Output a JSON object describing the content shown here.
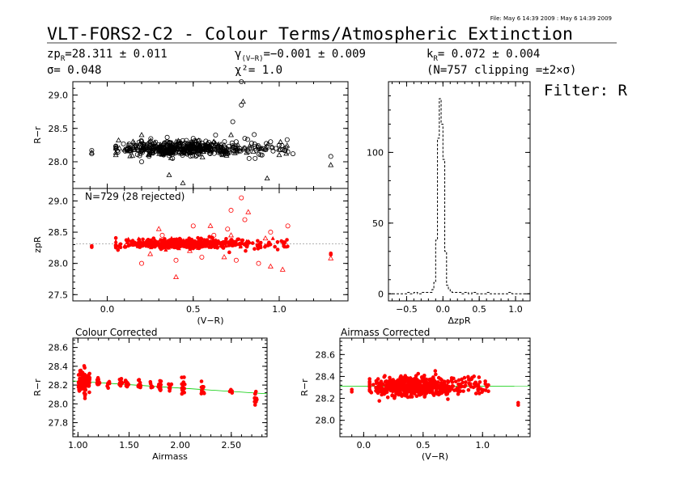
{
  "header": {
    "file_stamp": "File: May  6 14:39 2009 : May  6 14:39 2009",
    "title": "VLT-FORS2-C2 - Colour Terms/Atmospheric Extinction",
    "zp": "zpR=28.311 ± 0.011",
    "zp_main": "zp",
    "zp_sub": "R",
    "zp_rest": "=28.311 ± 0.011",
    "sigma": "σ= 0.048",
    "gamma_main": "γ",
    "gamma_sub": "(V−R)",
    "gamma_rest": "=−0.001 ± 0.009",
    "chi2": "χ²=  1.0",
    "k_main": "k",
    "k_sub": "R",
    "k_rest": "= 0.072 ± 0.004",
    "clip": "(N=757 clipping =±2×σ)",
    "filter": "Filter: R"
  },
  "chart_data": [
    {
      "id": "raw_colour",
      "type": "scatter",
      "xlabel": "",
      "ylabel": "R−r",
      "xlim": [
        -0.2,
        1.4
      ],
      "ylim": [
        27.6,
        29.2
      ],
      "yticks": [
        28.0,
        28.5,
        29.0
      ],
      "ytick_labels": [
        "28.0",
        "28.5",
        "29.0"
      ],
      "xticks": [
        0.0,
        0.5,
        1.0
      ],
      "xtick_labels": [],
      "color": "#000000",
      "series": [
        {
          "marker": "circle",
          "points": [
            [
              -0.09,
              28.17
            ],
            [
              -0.09,
              28.12
            ],
            [
              0.2,
              28.0
            ],
            [
              0.25,
              28.3
            ],
            [
              0.3,
              28.15
            ],
            [
              0.35,
              28.25
            ],
            [
              0.38,
              28.05
            ],
            [
              0.42,
              28.3
            ],
            [
              0.47,
              28.2
            ],
            [
              0.5,
              28.35
            ],
            [
              0.52,
              28.1
            ],
            [
              0.55,
              28.28
            ],
            [
              0.6,
              28.18
            ],
            [
              0.63,
              28.4
            ],
            [
              0.66,
              28.22
            ],
            [
              0.7,
              28.12
            ],
            [
              0.73,
              28.6
            ],
            [
              0.75,
              28.3
            ],
            [
              0.77,
              28.2
            ],
            [
              0.78,
              28.85
            ],
            [
              0.78,
              29.2
            ],
            [
              0.8,
              28.35
            ],
            [
              0.82,
              28.15
            ],
            [
              0.84,
              28.28
            ],
            [
              0.86,
              28.05
            ],
            [
              0.88,
              28.22
            ],
            [
              0.9,
              28.1
            ],
            [
              0.92,
              28.18
            ],
            [
              0.95,
              28.3
            ],
            [
              0.98,
              28.2
            ],
            [
              1.0,
              28.25
            ],
            [
              1.02,
              28.18
            ],
            [
              1.05,
              28.15
            ],
            [
              1.08,
              28.12
            ],
            [
              1.3,
              28.08
            ]
          ]
        },
        {
          "marker": "triangle",
          "points": [
            [
              -0.09,
              28.14
            ],
            [
              0.05,
              28.2
            ],
            [
              0.1,
              28.18
            ],
            [
              0.15,
              28.3
            ],
            [
              0.2,
              28.4
            ],
            [
              0.24,
              28.1
            ],
            [
              0.27,
              28.22
            ],
            [
              0.32,
              28.15
            ],
            [
              0.36,
              27.8
            ],
            [
              0.4,
              28.3
            ],
            [
              0.44,
              27.68
            ],
            [
              0.48,
              28.2
            ],
            [
              0.56,
              28.15
            ],
            [
              0.62,
              28.3
            ],
            [
              0.67,
              28.1
            ],
            [
              0.72,
              28.4
            ],
            [
              0.76,
              28.25
            ],
            [
              0.79,
              28.9
            ],
            [
              0.85,
              28.15
            ],
            [
              0.9,
              28.2
            ],
            [
              0.93,
              27.75
            ],
            [
              1.0,
              28.1
            ],
            [
              1.3,
              27.95
            ]
          ]
        }
      ]
    },
    {
      "id": "zp_colour",
      "type": "scatter",
      "annotation": "N=729 (28 rejected)",
      "xlabel": "(V−R)",
      "ylabel": "zpR",
      "xlim": [
        -0.2,
        1.4
      ],
      "ylim": [
        27.4,
        29.2
      ],
      "yticks": [
        27.5,
        28.0,
        28.5,
        29.0
      ],
      "ytick_labels": [
        "27.5",
        "28.0",
        "28.5",
        "29.0"
      ],
      "xticks": [
        0.0,
        0.5,
        1.0
      ],
      "xtick_labels": [
        "0.0",
        "0.5",
        "1.0"
      ],
      "color": "#ff0000",
      "fit_line": {
        "y": 28.311,
        "color": "#999999",
        "style": "dotted"
      },
      "series": [
        {
          "marker": "circle-open",
          "points": [
            [
              0.2,
              28.0
            ],
            [
              0.32,
              28.45
            ],
            [
              0.4,
              28.05
            ],
            [
              0.5,
              28.6
            ],
            [
              0.55,
              28.1
            ],
            [
              0.62,
              28.45
            ],
            [
              0.7,
              28.55
            ],
            [
              0.72,
              28.85
            ],
            [
              0.75,
              28.05
            ],
            [
              0.78,
              29.05
            ],
            [
              0.8,
              28.7
            ],
            [
              0.88,
              28.0
            ],
            [
              0.95,
              28.5
            ],
            [
              1.05,
              28.6
            ]
          ]
        },
        {
          "marker": "triangle-open",
          "points": [
            [
              0.25,
              28.15
            ],
            [
              0.3,
              28.55
            ],
            [
              0.4,
              27.78
            ],
            [
              0.48,
              28.2
            ],
            [
              0.6,
              28.6
            ],
            [
              0.68,
              28.1
            ],
            [
              0.72,
              28.45
            ],
            [
              0.82,
              28.82
            ],
            [
              0.92,
              28.4
            ],
            [
              0.95,
              27.95
            ],
            [
              1.02,
              27.9
            ],
            [
              1.3,
              28.08
            ]
          ]
        }
      ]
    },
    {
      "id": "histogram",
      "type": "bar",
      "xlabel": "ΔzpR",
      "ylabel": "",
      "xlim": [
        -0.75,
        1.2
      ],
      "ylim": [
        -5,
        150
      ],
      "yticks": [
        0,
        50,
        100
      ],
      "ytick_labels": [
        "0",
        "50",
        "100"
      ],
      "xticks": [
        -0.5,
        0.0,
        0.5,
        1.0
      ],
      "xtick_labels": [
        "−0.5",
        "0.0",
        "0.5",
        "1.0"
      ],
      "style": "dashed-step",
      "bin_edges": [
        -0.75,
        -0.7,
        -0.65,
        -0.6,
        -0.55,
        -0.5,
        -0.45,
        -0.4,
        -0.35,
        -0.3,
        -0.25,
        -0.2,
        -0.15,
        -0.125,
        -0.1,
        -0.075,
        -0.05,
        -0.025,
        0.0,
        0.025,
        0.05,
        0.075,
        0.1,
        0.125,
        0.15,
        0.2,
        0.25,
        0.3,
        0.35,
        0.4,
        0.45,
        0.5,
        0.55,
        0.6,
        0.65,
        0.7,
        0.75,
        0.8,
        0.85,
        0.9,
        0.95,
        1.0,
        1.05,
        1.1,
        1.15,
        1.2
      ],
      "counts": [
        0,
        0,
        0,
        0,
        0,
        1,
        0,
        1,
        0,
        1,
        1,
        1,
        3,
        8,
        38,
        110,
        138,
        120,
        95,
        30,
        6,
        3,
        2,
        1,
        1,
        1,
        0,
        1,
        0,
        1,
        0,
        0,
        0,
        1,
        0,
        0,
        0,
        0,
        0,
        1,
        0,
        0,
        0,
        0,
        0
      ]
    },
    {
      "id": "colour_corrected",
      "type": "scatter",
      "title": "Colour Corrected",
      "xlabel": "Airmass",
      "ylabel": "R−r",
      "xlim": [
        0.95,
        2.85
      ],
      "ylim": [
        27.65,
        28.7
      ],
      "yticks": [
        27.8,
        28.0,
        28.2,
        28.4,
        28.6
      ],
      "ytick_labels": [
        "27.8",
        "28.0",
        "28.2",
        "28.4",
        "28.6"
      ],
      "xticks": [
        1.0,
        1.5,
        2.0,
        2.5
      ],
      "xtick_labels": [
        "1.00",
        "1.50",
        "2.00",
        "2.50"
      ],
      "color": "#ff0000",
      "fit_line": {
        "points": [
          [
            0.95,
            28.244
          ],
          [
            2.85,
            28.107
          ]
        ],
        "color": "#00cc00"
      },
      "columns": [
        {
          "x": 1.02,
          "n": 40,
          "center": 28.24,
          "spread": 0.14
        },
        {
          "x": 1.06,
          "n": 45,
          "center": 28.23,
          "spread": 0.14
        },
        {
          "x": 1.1,
          "n": 30,
          "center": 28.22,
          "spread": 0.12
        },
        {
          "x": 1.2,
          "n": 12,
          "center": 28.22,
          "spread": 0.08
        },
        {
          "x": 1.3,
          "n": 6,
          "center": 28.2,
          "spread": 0.06
        },
        {
          "x": 1.42,
          "n": 12,
          "center": 28.22,
          "spread": 0.07
        },
        {
          "x": 1.48,
          "n": 12,
          "center": 28.21,
          "spread": 0.07
        },
        {
          "x": 1.6,
          "n": 10,
          "center": 28.2,
          "spread": 0.07
        },
        {
          "x": 1.72,
          "n": 8,
          "center": 28.2,
          "spread": 0.06
        },
        {
          "x": 1.8,
          "n": 14,
          "center": 28.2,
          "spread": 0.09
        },
        {
          "x": 1.9,
          "n": 6,
          "center": 28.18,
          "spread": 0.05
        },
        {
          "x": 2.03,
          "n": 16,
          "center": 28.18,
          "spread": 0.12
        },
        {
          "x": 2.22,
          "n": 12,
          "center": 28.15,
          "spread": 0.09
        },
        {
          "x": 2.5,
          "n": 4,
          "center": 28.13,
          "spread": 0.03
        },
        {
          "x": 2.74,
          "n": 12,
          "center": 28.06,
          "spread": 0.08
        }
      ]
    },
    {
      "id": "airmass_corrected",
      "type": "scatter",
      "title": "Airmass Corrected",
      "xlabel": "(V−R)",
      "ylabel": "R−r",
      "xlim": [
        -0.2,
        1.4
      ],
      "ylim": [
        27.85,
        28.75
      ],
      "yticks": [
        28.0,
        28.2,
        28.4,
        28.6
      ],
      "ytick_labels": [
        "28.0",
        "28.2",
        "28.4",
        "28.6"
      ],
      "xticks": [
        0.0,
        0.5,
        1.0
      ],
      "xtick_labels": [
        "0.0",
        "0.5",
        "1.0"
      ],
      "color": "#ff0000",
      "fit_line": {
        "points": [
          [
            -0.2,
            28.311
          ],
          [
            1.4,
            28.31
          ]
        ],
        "color": "#00cc00"
      },
      "extra_points": [
        [
          -0.1,
          28.28
        ],
        [
          -0.1,
          28.26
        ],
        [
          1.3,
          28.16
        ],
        [
          1.3,
          28.14
        ]
      ]
    }
  ]
}
